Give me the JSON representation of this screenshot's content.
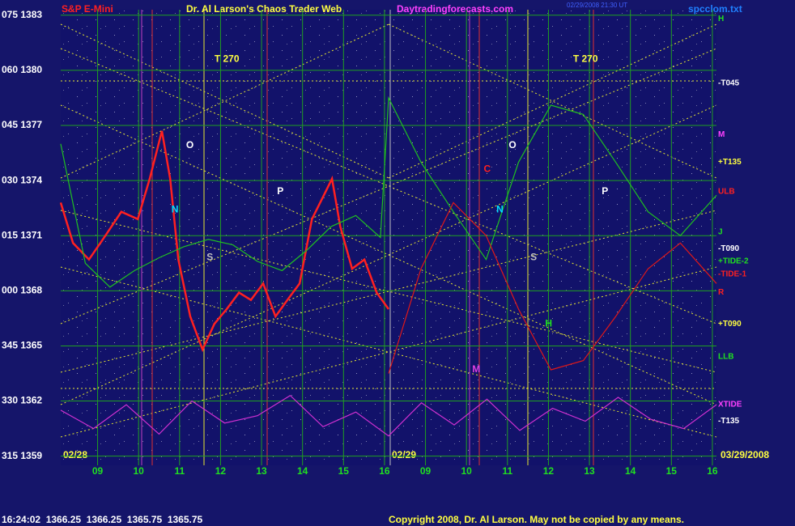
{
  "chart_data": {
    "type": "line",
    "title": "Dr. Al Larson's Chaos Trader Web",
    "header_left": "S&P E-Mini",
    "header_site": "Daytradingforecasts.com",
    "header_time": "02/29/2008 21:30 UT",
    "header_file": "spcclom.txt",
    "date_labels": [
      "02/28",
      "02/29",
      "03/29/2008"
    ],
    "footer_quote": "16:24:02  1366.25  1366.25  1365.75  1365.75",
    "footer_copyright": "Copyright 2008, Dr. Al Larson. May not be copied by any means.",
    "xlim": [
      0,
      16
    ],
    "ylim": [
      1358.5,
      1383.3
    ],
    "xticks": [
      {
        "value": 0.9,
        "label": "09"
      },
      {
        "value": 1.9,
        "label": "10"
      },
      {
        "value": 2.9,
        "label": "11"
      },
      {
        "value": 3.9,
        "label": "12"
      },
      {
        "value": 4.9,
        "label": "13"
      },
      {
        "value": 5.9,
        "label": "14"
      },
      {
        "value": 6.9,
        "label": "15"
      },
      {
        "value": 7.9,
        "label": "16"
      },
      {
        "value": 8.9,
        "label": "09"
      },
      {
        "value": 9.9,
        "label": "10"
      },
      {
        "value": 10.9,
        "label": "11"
      },
      {
        "value": 11.9,
        "label": "12"
      },
      {
        "value": 12.9,
        "label": "13"
      },
      {
        "value": 13.9,
        "label": "14"
      },
      {
        "value": 14.9,
        "label": "15"
      },
      {
        "value": 15.9,
        "label": "16"
      }
    ],
    "yticks": [
      {
        "value": 1383,
        "label": "075 1383"
      },
      {
        "value": 1380,
        "label": "060 1380"
      },
      {
        "value": 1377,
        "label": "045 1377"
      },
      {
        "value": 1374,
        "label": "030 1374"
      },
      {
        "value": 1371,
        "label": "015 1371"
      },
      {
        "value": 1368,
        "label": "000 1368"
      },
      {
        "value": 1365,
        "label": "345 1365"
      },
      {
        "value": 1362,
        "label": "330 1362"
      },
      {
        "value": 1359,
        "label": "315 1359"
      }
    ],
    "grid": true,
    "series": [
      {
        "name": "price",
        "color": "#ff2020",
        "x": [
          0,
          0.3,
          0.69,
          1.09,
          1.48,
          1.88,
          2.17,
          2.47,
          2.67,
          2.87,
          3.16,
          3.46,
          3.75,
          4.05,
          4.35,
          4.64,
          4.94,
          5.24,
          5.53,
          5.83,
          6.13,
          6.42,
          6.62,
          6.82,
          7.11,
          7.41,
          7.71,
          8.0
        ],
        "values": [
          1372.8,
          1370.6,
          1369.7,
          1371.0,
          1372.3,
          1371.9,
          1374.1,
          1376.7,
          1374.1,
          1369.7,
          1366.6,
          1364.8,
          1366.2,
          1367.0,
          1367.9,
          1367.5,
          1368.4,
          1366.6,
          1367.5,
          1368.4,
          1371.9,
          1373.2,
          1374.1,
          1371.5,
          1369.2,
          1369.7,
          1367.9,
          1367.0
        ]
      },
      {
        "name": "green-flux",
        "color": "#20c020",
        "x": [
          0,
          0.6,
          1.2,
          1.8,
          2.4,
          3.0,
          3.6,
          4.2,
          4.8,
          5.4,
          6.0,
          6.6,
          7.2,
          7.8,
          8.0,
          8.79,
          9.58,
          10.38,
          11.17,
          11.96,
          12.75,
          13.54,
          14.33,
          15.12,
          16.0
        ],
        "values": [
          1376.0,
          1369.5,
          1368.2,
          1369.1,
          1369.8,
          1370.4,
          1370.8,
          1370.5,
          1369.6,
          1369.1,
          1370.2,
          1371.5,
          1372.1,
          1370.9,
          1378.5,
          1375.0,
          1372.3,
          1369.7,
          1375.0,
          1378.1,
          1377.6,
          1375.0,
          1372.3,
          1371.0,
          1373.2
        ]
      },
      {
        "name": "red-projection",
        "color": "#e01818",
        "x": [
          8.0,
          8.79,
          9.58,
          10.38,
          11.17,
          11.96,
          12.75,
          13.54,
          14.33,
          15.12,
          16.0
        ],
        "values": [
          1363.5,
          1369.2,
          1372.8,
          1371.0,
          1367.0,
          1363.7,
          1364.2,
          1366.6,
          1369.2,
          1370.6,
          1368.4
        ]
      },
      {
        "name": "XTIDE",
        "color": "#d030d0",
        "x": [
          0,
          0.8,
          1.6,
          2.4,
          3.2,
          4.0,
          4.8,
          5.6,
          6.4,
          7.2,
          8.0,
          8.8,
          9.6,
          10.4,
          11.2,
          12.0,
          12.8,
          13.6,
          14.4,
          15.2,
          16.0
        ],
        "values": [
          1361.5,
          1360.5,
          1361.8,
          1360.2,
          1362.0,
          1360.8,
          1361.2,
          1362.3,
          1360.6,
          1361.4,
          1360.1,
          1361.9,
          1360.7,
          1362.1,
          1360.4,
          1361.6,
          1360.9,
          1362.2,
          1361.0,
          1360.5,
          1361.8
        ]
      }
    ],
    "annotations": [
      {
        "text": "T 270",
        "x": 3.75,
        "y": 1380.6,
        "color": "#ffff40"
      },
      {
        "text": "T 270",
        "x": 12.5,
        "y": 1380.6,
        "color": "#ffff40"
      },
      {
        "text": "O",
        "x": 3.06,
        "y": 1375.9,
        "color": "#ffffff"
      },
      {
        "text": "P",
        "x": 5.28,
        "y": 1373.4,
        "color": "#ffffff"
      },
      {
        "text": "S",
        "x": 3.56,
        "y": 1369.8,
        "color": "#c0c0c0"
      },
      {
        "text": "N",
        "x": 2.7,
        "y": 1372.4,
        "color": "#00e0ff"
      },
      {
        "text": "O",
        "x": 10.93,
        "y": 1375.9,
        "color": "#ffffff"
      },
      {
        "text": "C",
        "x": 10.32,
        "y": 1374.6,
        "color": "#ff2020"
      },
      {
        "text": "N",
        "x": 10.63,
        "y": 1372.4,
        "color": "#00e0ff"
      },
      {
        "text": "S",
        "x": 11.46,
        "y": 1369.8,
        "color": "#c0c0c0"
      },
      {
        "text": "P",
        "x": 13.2,
        "y": 1373.4,
        "color": "#ffffff"
      },
      {
        "text": "H",
        "x": 11.82,
        "y": 1366.2,
        "color": "#20e020"
      },
      {
        "text": "M",
        "x": 10.04,
        "y": 1363.7,
        "color": "#e040e0"
      }
    ],
    "side_labels": [
      {
        "text": "H",
        "y": 1382.8,
        "color": "#20e020"
      },
      {
        "text": "-T045",
        "y": 1379.3,
        "color": "#ffffff"
      },
      {
        "text": "M",
        "y": 1376.5,
        "color": "#ff40ff"
      },
      {
        "text": "+T135",
        "y": 1375.0,
        "color": "#ffff40"
      },
      {
        "text": "ULB",
        "y": 1373.4,
        "color": "#ff2020"
      },
      {
        "text": "J",
        "y": 1371.2,
        "color": "#20e020"
      },
      {
        "text": "-T090",
        "y": 1370.3,
        "color": "#ffffff"
      },
      {
        "text": "+TIDE-2",
        "y": 1369.6,
        "color": "#20e020"
      },
      {
        "text": "-TIDE-1",
        "y": 1368.9,
        "color": "#ff2020"
      },
      {
        "text": "R",
        "y": 1367.9,
        "color": "#ff2020"
      },
      {
        "text": "+T090",
        "y": 1366.2,
        "color": "#ffff40"
      },
      {
        "text": "LLB",
        "y": 1364.4,
        "color": "#20e020"
      },
      {
        "text": "XTIDE",
        "y": 1361.8,
        "color": "#ff40ff"
      },
      {
        "text": "-T135",
        "y": 1360.9,
        "color": "#ffffff"
      }
    ]
  }
}
